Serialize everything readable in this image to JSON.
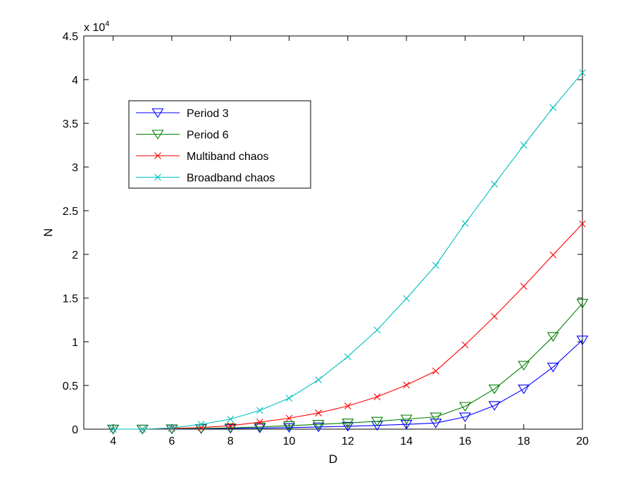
{
  "chart_data": {
    "type": "line",
    "xlabel": "D",
    "ylabel": "N",
    "y_multiplier_base": "x 10",
    "y_multiplier_exp": "4",
    "xlim": [
      3,
      20
    ],
    "ylim": [
      0,
      45000
    ],
    "xticks": [
      4,
      6,
      8,
      10,
      12,
      14,
      16,
      18,
      20
    ],
    "yticks": [
      {
        "value": 0,
        "label": "0"
      },
      {
        "value": 5000,
        "label": "0.5"
      },
      {
        "value": 10000,
        "label": "1"
      },
      {
        "value": 15000,
        "label": "1.5"
      },
      {
        "value": 20000,
        "label": "2"
      },
      {
        "value": 25000,
        "label": "2.5"
      },
      {
        "value": 30000,
        "label": "3"
      },
      {
        "value": 35000,
        "label": "3.5"
      },
      {
        "value": 40000,
        "label": "4"
      },
      {
        "value": 45000,
        "label": "4.5"
      }
    ],
    "grid": false,
    "legend_position": "top-left",
    "x": [
      4,
      5,
      6,
      7,
      8,
      9,
      10,
      11,
      12,
      13,
      14,
      15,
      16,
      17,
      18,
      19,
      20
    ],
    "series": [
      {
        "name": "Period 3",
        "color": "#0000ff",
        "marker": "triangle-down",
        "values": [
          0,
          0,
          20,
          40,
          80,
          120,
          180,
          250,
          330,
          430,
          550,
          700,
          1400,
          2700,
          4600,
          7100,
          10200
        ]
      },
      {
        "name": "Period 6",
        "color": "#008000",
        "marker": "triangle-down",
        "values": [
          0,
          0,
          40,
          80,
          150,
          250,
          400,
          550,
          700,
          900,
          1150,
          1400,
          2600,
          4600,
          7300,
          10600,
          14400
        ]
      },
      {
        "name": "Multiband chaos",
        "color": "#ff0000",
        "marker": "x",
        "values": [
          0,
          0,
          90,
          180,
          400,
          800,
          1250,
          1850,
          2650,
          3700,
          5050,
          6650,
          9650,
          12900,
          16350,
          19950,
          23500
        ]
      },
      {
        "name": "Broadband chaos",
        "color": "#00bfbf",
        "marker": "x",
        "values": [
          0,
          0,
          150,
          550,
          1150,
          2150,
          3550,
          5650,
          8300,
          11350,
          14950,
          18750,
          23550,
          28050,
          32500,
          36800,
          40800
        ]
      }
    ]
  }
}
